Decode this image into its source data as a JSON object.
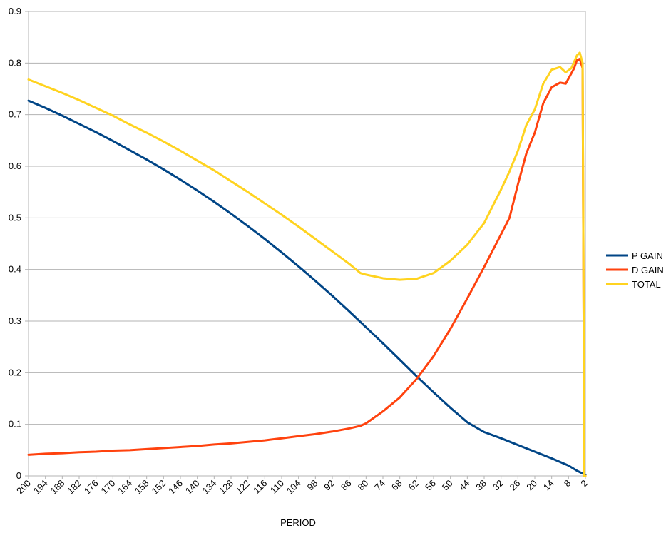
{
  "chart_data": {
    "type": "line",
    "title": "",
    "xlabel": "PERIOD",
    "ylabel": "",
    "ylim": [
      0,
      0.9
    ],
    "yticks": [
      "0",
      "0.1",
      "0.2",
      "0.3",
      "0.4",
      "0.5",
      "0.6",
      "0.7",
      "0.8",
      "0.9"
    ],
    "xlim": [
      200,
      2
    ],
    "xticks": [
      "200",
      "194",
      "188",
      "182",
      "176",
      "170",
      "164",
      "158",
      "152",
      "146",
      "140",
      "134",
      "128",
      "122",
      "116",
      "110",
      "104",
      "98",
      "92",
      "86",
      "80",
      "74",
      "68",
      "62",
      "56",
      "50",
      "44",
      "38",
      "32",
      "26",
      "20",
      "14",
      "8",
      "2"
    ],
    "grid": true,
    "legend": "right",
    "series": [
      {
        "name": "P GAIN",
        "color": "#004586",
        "points": [
          [
            200,
            0.727
          ],
          [
            194,
            0.713
          ],
          [
            188,
            0.698
          ],
          [
            182,
            0.682
          ],
          [
            176,
            0.666
          ],
          [
            170,
            0.649
          ],
          [
            164,
            0.631
          ],
          [
            158,
            0.613
          ],
          [
            152,
            0.594
          ],
          [
            146,
            0.574
          ],
          [
            140,
            0.553
          ],
          [
            134,
            0.531
          ],
          [
            128,
            0.508
          ],
          [
            122,
            0.484
          ],
          [
            116,
            0.459
          ],
          [
            110,
            0.433
          ],
          [
            104,
            0.406
          ],
          [
            98,
            0.378
          ],
          [
            92,
            0.349
          ],
          [
            86,
            0.319
          ],
          [
            80,
            0.288
          ],
          [
            74,
            0.257
          ],
          [
            68,
            0.225
          ],
          [
            62,
            0.193
          ],
          [
            56,
            0.162
          ],
          [
            50,
            0.132
          ],
          [
            44,
            0.104
          ],
          [
            38,
            0.085
          ],
          [
            32,
            0.073
          ],
          [
            26,
            0.06
          ],
          [
            20,
            0.047
          ],
          [
            14,
            0.034
          ],
          [
            8,
            0.02
          ],
          [
            5,
            0.01
          ],
          [
            2,
            0.002
          ]
        ]
      },
      {
        "name": "D GAIN",
        "color": "#ff420e",
        "points": [
          [
            200,
            0.041
          ],
          [
            194,
            0.043
          ],
          [
            188,
            0.044
          ],
          [
            182,
            0.046
          ],
          [
            176,
            0.047
          ],
          [
            170,
            0.049
          ],
          [
            164,
            0.05
          ],
          [
            158,
            0.052
          ],
          [
            152,
            0.054
          ],
          [
            146,
            0.056
          ],
          [
            140,
            0.058
          ],
          [
            134,
            0.061
          ],
          [
            128,
            0.063
          ],
          [
            122,
            0.066
          ],
          [
            116,
            0.069
          ],
          [
            110,
            0.073
          ],
          [
            104,
            0.077
          ],
          [
            98,
            0.081
          ],
          [
            92,
            0.086
          ],
          [
            86,
            0.092
          ],
          [
            82,
            0.097
          ],
          [
            80,
            0.102
          ],
          [
            74,
            0.125
          ],
          [
            68,
            0.152
          ],
          [
            62,
            0.188
          ],
          [
            56,
            0.232
          ],
          [
            50,
            0.285
          ],
          [
            44,
            0.344
          ],
          [
            38,
            0.405
          ],
          [
            32,
            0.468
          ],
          [
            29,
            0.5
          ],
          [
            26,
            0.565
          ],
          [
            23,
            0.625
          ],
          [
            20,
            0.665
          ],
          [
            17,
            0.722
          ],
          [
            14,
            0.753
          ],
          [
            11,
            0.762
          ],
          [
            9,
            0.76
          ],
          [
            6,
            0.79
          ],
          [
            5,
            0.806
          ],
          [
            4,
            0.808
          ],
          [
            3,
            0.79
          ],
          [
            2.4,
            0.0
          ],
          [
            2,
            0.0
          ]
        ]
      },
      {
        "name": "TOTAL",
        "color": "#ffd320",
        "points": [
          [
            200,
            0.768
          ],
          [
            194,
            0.755
          ],
          [
            188,
            0.742
          ],
          [
            182,
            0.728
          ],
          [
            176,
            0.713
          ],
          [
            170,
            0.698
          ],
          [
            164,
            0.681
          ],
          [
            158,
            0.665
          ],
          [
            152,
            0.648
          ],
          [
            146,
            0.63
          ],
          [
            140,
            0.611
          ],
          [
            134,
            0.592
          ],
          [
            128,
            0.571
          ],
          [
            122,
            0.55
          ],
          [
            116,
            0.528
          ],
          [
            110,
            0.506
          ],
          [
            104,
            0.483
          ],
          [
            98,
            0.459
          ],
          [
            92,
            0.435
          ],
          [
            86,
            0.411
          ],
          [
            82,
            0.393
          ],
          [
            80,
            0.39
          ],
          [
            74,
            0.383
          ],
          [
            68,
            0.38
          ],
          [
            62,
            0.382
          ],
          [
            56,
            0.393
          ],
          [
            50,
            0.417
          ],
          [
            44,
            0.448
          ],
          [
            38,
            0.49
          ],
          [
            32,
            0.555
          ],
          [
            29,
            0.59
          ],
          [
            26,
            0.63
          ],
          [
            23,
            0.68
          ],
          [
            20,
            0.71
          ],
          [
            17,
            0.76
          ],
          [
            14,
            0.787
          ],
          [
            11,
            0.792
          ],
          [
            9,
            0.782
          ],
          [
            7,
            0.79
          ],
          [
            5,
            0.815
          ],
          [
            4,
            0.82
          ],
          [
            3,
            0.8
          ],
          [
            2.4,
            0.0
          ],
          [
            2,
            0.0
          ]
        ]
      }
    ]
  }
}
